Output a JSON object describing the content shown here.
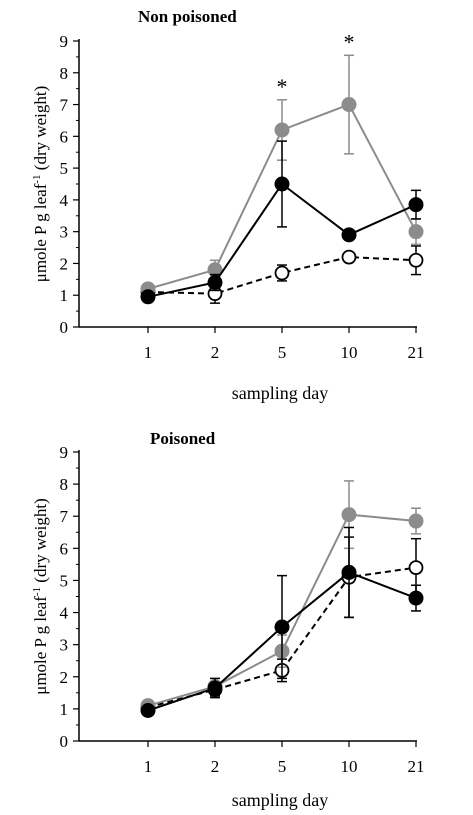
{
  "chart_data": [
    {
      "type": "line",
      "title": "Non poisoned",
      "xlabel": "sampling day",
      "ylabel": "μmole P g leaf-1 (dry weight)",
      "ylabel_parts": {
        "before": "μmole P g leaf",
        "sup": "-1",
        "after": " (dry weight)"
      },
      "categories": [
        "1",
        "2",
        "5",
        "10",
        "21"
      ],
      "ylim": [
        0,
        9
      ],
      "yticks": [
        "0",
        "1",
        "2",
        "3",
        "4",
        "5",
        "6",
        "7",
        "8",
        "9"
      ],
      "series": [
        {
          "style": "gray-filled-solid",
          "color": "#8c8c8c",
          "values": [
            1.2,
            1.8,
            6.2,
            7.0,
            3.0
          ],
          "errors": [
            0.15,
            0.3,
            0.95,
            1.55,
            0.4
          ]
        },
        {
          "style": "black-filled-solid",
          "color": "#000000",
          "values": [
            0.95,
            1.4,
            4.5,
            2.9,
            3.85
          ],
          "errors": [
            0.15,
            0.25,
            1.35,
            0.15,
            0.45
          ]
        },
        {
          "style": "open-dashed",
          "color": "#000000",
          "values": [
            1.1,
            1.05,
            1.7,
            2.2,
            2.1
          ],
          "errors": [
            0.25,
            0.3,
            0.25,
            0.15,
            0.45
          ]
        }
      ],
      "annotations": [
        {
          "category": "5",
          "text": "*"
        },
        {
          "category": "10",
          "text": "*"
        }
      ]
    },
    {
      "type": "line",
      "title": "Poisoned",
      "xlabel": "sampling day",
      "ylabel": "μmole P g leaf-1 (dry weight)",
      "ylabel_parts": {
        "before": "μmole P g leaf",
        "sup": "-1",
        "after": " (dry weight)"
      },
      "categories": [
        "1",
        "2",
        "5",
        "10",
        "21"
      ],
      "ylim": [
        0,
        9
      ],
      "yticks": [
        "0",
        "1",
        "2",
        "3",
        "4",
        "5",
        "6",
        "7",
        "8",
        "9"
      ],
      "series": [
        {
          "style": "gray-filled-solid",
          "color": "#8c8c8c",
          "values": [
            1.1,
            1.7,
            2.8,
            7.05,
            6.85
          ],
          "errors": [
            0.1,
            0.15,
            0.5,
            1.05,
            0.4
          ]
        },
        {
          "style": "black-filled-solid",
          "color": "#000000",
          "values": [
            0.95,
            1.65,
            3.55,
            5.25,
            4.45
          ],
          "errors": [
            0.1,
            0.3,
            1.6,
            1.4,
            0.4
          ]
        },
        {
          "style": "open-dashed",
          "color": "#000000",
          "values": [
            1.05,
            1.6,
            2.2,
            5.1,
            5.4
          ],
          "errors": [
            0.1,
            0.2,
            0.35,
            1.25,
            0.9
          ]
        }
      ],
      "annotations": []
    }
  ]
}
